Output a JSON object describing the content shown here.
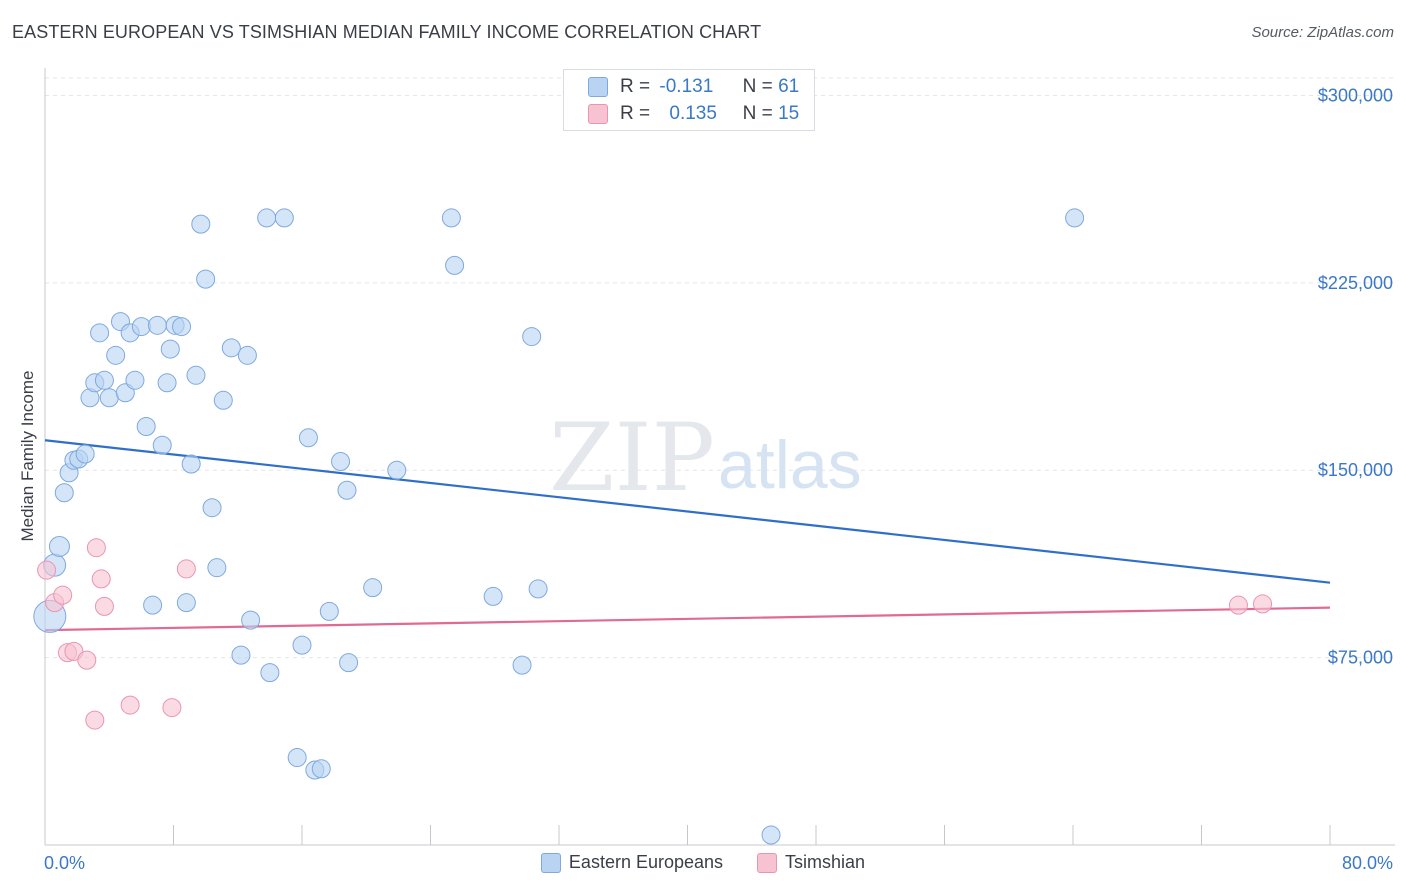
{
  "title": "EASTERN EUROPEAN VS TSIMSHIAN MEDIAN FAMILY INCOME CORRELATION CHART",
  "source": "Source: ZipAtlas.com",
  "colors": {
    "series1_fill": "#b9d3f3",
    "series1_stroke": "#7fa9de",
    "series1_line": "#2f6fcb",
    "series2_fill": "#f7c3d2",
    "series2_stroke": "#ea95b0",
    "series2_line": "#e06a93",
    "tick_label": "#3a78c8",
    "grid": "#e3e6ea"
  },
  "stats": {
    "row1": {
      "r_label": "R =",
      "r_value": "-0.131",
      "n_label": "N =",
      "n_value": "61"
    },
    "row2": {
      "r_label": "R =",
      "r_value": "0.135",
      "n_label": "N =",
      "n_value": "15"
    }
  },
  "legend": {
    "series1": "Eastern Europeans",
    "series2": "Tsimshian"
  },
  "watermark": {
    "zip": "ZIP",
    "atlas": "atlas"
  },
  "chart_data": {
    "type": "scatter",
    "title": "EASTERN EUROPEAN VS TSIMSHIAN MEDIAN FAMILY INCOME CORRELATION CHART",
    "xlabel": "",
    "ylabel": "Median Family Income",
    "xlim": [
      0,
      80
    ],
    "ylim": [
      0,
      307000
    ],
    "x_tick_labels": [
      "0.0%",
      "80.0%"
    ],
    "y_ticks": [
      75000,
      150000,
      225000,
      300000
    ],
    "y_tick_labels": [
      "$75,000",
      "$150,000",
      "$225,000",
      "$300,000"
    ],
    "grid": true,
    "legend_position": "bottom",
    "series": [
      {
        "name": "Eastern Europeans",
        "points": [
          [
            0.3,
            91500
          ],
          [
            0.6,
            112000
          ],
          [
            0.9,
            119500
          ],
          [
            1.2,
            141000
          ],
          [
            1.5,
            149000
          ],
          [
            1.8,
            154000
          ],
          [
            2.1,
            154500
          ],
          [
            2.5,
            156500
          ],
          [
            2.8,
            179000
          ],
          [
            3.1,
            185000
          ],
          [
            3.4,
            205000
          ],
          [
            3.7,
            186000
          ],
          [
            4.0,
            179000
          ],
          [
            4.4,
            196000
          ],
          [
            4.7,
            209500
          ],
          [
            5.0,
            181000
          ],
          [
            5.3,
            205000
          ],
          [
            5.6,
            186000
          ],
          [
            6.0,
            207500
          ],
          [
            6.3,
            167500
          ],
          [
            6.7,
            96000
          ],
          [
            7.0,
            208000
          ],
          [
            7.3,
            160000
          ],
          [
            7.6,
            185000
          ],
          [
            7.8,
            198500
          ],
          [
            8.1,
            208000
          ],
          [
            8.5,
            207500
          ],
          [
            8.8,
            97000
          ],
          [
            9.1,
            152500
          ],
          [
            9.4,
            188000
          ],
          [
            9.7,
            248500
          ],
          [
            10.0,
            226500
          ],
          [
            10.4,
            135000
          ],
          [
            10.7,
            111000
          ],
          [
            11.1,
            178000
          ],
          [
            11.6,
            199000
          ],
          [
            12.2,
            76000
          ],
          [
            12.6,
            196000
          ],
          [
            12.8,
            90000
          ],
          [
            13.8,
            251000
          ],
          [
            14.0,
            69000
          ],
          [
            14.9,
            251000
          ],
          [
            15.7,
            35000
          ],
          [
            16.0,
            80000
          ],
          [
            16.4,
            163000
          ],
          [
            16.8,
            30000
          ],
          [
            17.2,
            30500
          ],
          [
            17.7,
            93500
          ],
          [
            18.4,
            153500
          ],
          [
            18.8,
            142000
          ],
          [
            18.9,
            73000
          ],
          [
            20.4,
            103000
          ],
          [
            21.9,
            150000
          ],
          [
            25.3,
            251000
          ],
          [
            25.5,
            232000
          ],
          [
            27.9,
            99500
          ],
          [
            29.7,
            72000
          ],
          [
            30.3,
            203500
          ],
          [
            30.7,
            102500
          ],
          [
            45.2,
            4000
          ],
          [
            64.1,
            251000
          ]
        ]
      },
      {
        "name": "Tsimshian",
        "points": [
          [
            0.1,
            110000
          ],
          [
            0.6,
            97000
          ],
          [
            1.1,
            100000
          ],
          [
            1.4,
            77000
          ],
          [
            1.8,
            77500
          ],
          [
            2.6,
            74000
          ],
          [
            3.1,
            50000
          ],
          [
            3.2,
            119000
          ],
          [
            3.5,
            106500
          ],
          [
            3.7,
            95500
          ],
          [
            5.3,
            56000
          ],
          [
            7.9,
            55000
          ],
          [
            8.8,
            110500
          ],
          [
            74.3,
            96000
          ],
          [
            75.8,
            96500
          ]
        ]
      }
    ],
    "trend_lines": [
      {
        "name": "Eastern Europeans",
        "x": [
          0,
          80
        ],
        "y": [
          162000,
          105000
        ]
      },
      {
        "name": "Tsimshian",
        "x": [
          0,
          80
        ],
        "y": [
          86000,
          95000
        ]
      }
    ]
  }
}
